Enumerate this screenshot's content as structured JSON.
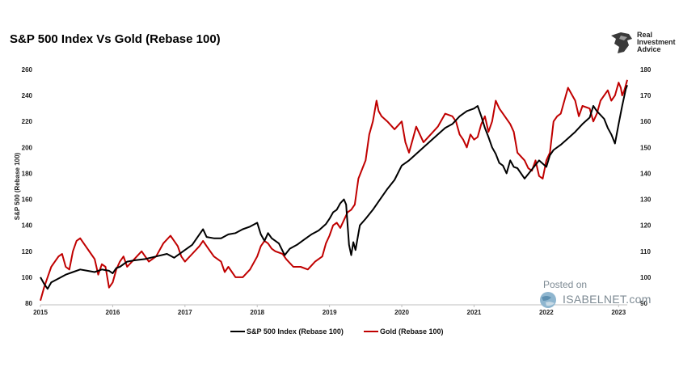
{
  "chart_data": {
    "type": "line",
    "title": "S&P 500 Index Vs Gold (Rebase 100)",
    "ylabel": "S&P 500 (Rebase 100)",
    "xlabel": "",
    "x_ticks": [
      "2015",
      "2016",
      "2017",
      "2018",
      "2019",
      "2020",
      "2021",
      "2022",
      "2023"
    ],
    "x_range": [
      2015.0,
      2023.12
    ],
    "ylim_left": [
      80,
      260
    ],
    "yticks_left": [
      80,
      100,
      120,
      140,
      160,
      180,
      200,
      220,
      240,
      260
    ],
    "ylim_right": [
      90,
      180
    ],
    "yticks_right": [
      90,
      100,
      110,
      120,
      130,
      140,
      150,
      160,
      170,
      180
    ],
    "series": [
      {
        "name": "S&P 500 Index (Rebase 100)",
        "axis": "left",
        "color": "#000000",
        "points": [
          [
            2015.0,
            100
          ],
          [
            2015.05,
            95
          ],
          [
            2015.1,
            91
          ],
          [
            2015.15,
            96
          ],
          [
            2015.25,
            99
          ],
          [
            2015.35,
            102
          ],
          [
            2015.45,
            104
          ],
          [
            2015.55,
            106
          ],
          [
            2015.65,
            105
          ],
          [
            2015.75,
            104
          ],
          [
            2015.85,
            106
          ],
          [
            2015.95,
            105
          ],
          [
            2016.0,
            103
          ],
          [
            2016.05,
            107
          ],
          [
            2016.1,
            108
          ],
          [
            2016.2,
            112
          ],
          [
            2016.3,
            113
          ],
          [
            2016.45,
            114
          ],
          [
            2016.6,
            116
          ],
          [
            2016.75,
            118
          ],
          [
            2016.85,
            115
          ],
          [
            2016.95,
            119
          ],
          [
            2017.0,
            121
          ],
          [
            2017.1,
            125
          ],
          [
            2017.2,
            133
          ],
          [
            2017.25,
            137
          ],
          [
            2017.3,
            131
          ],
          [
            2017.4,
            130
          ],
          [
            2017.5,
            130
          ],
          [
            2017.6,
            133
          ],
          [
            2017.7,
            134
          ],
          [
            2017.8,
            137
          ],
          [
            2017.9,
            139
          ],
          [
            2018.0,
            142
          ],
          [
            2018.05,
            133
          ],
          [
            2018.1,
            128
          ],
          [
            2018.15,
            134
          ],
          [
            2018.2,
            130
          ],
          [
            2018.3,
            126
          ],
          [
            2018.38,
            117
          ],
          [
            2018.45,
            122
          ],
          [
            2018.55,
            125
          ],
          [
            2018.65,
            129
          ],
          [
            2018.75,
            133
          ],
          [
            2018.85,
            136
          ],
          [
            2018.95,
            141
          ],
          [
            2019.0,
            145
          ],
          [
            2019.05,
            150
          ],
          [
            2019.1,
            152
          ],
          [
            2019.15,
            157
          ],
          [
            2019.2,
            160
          ],
          [
            2019.23,
            156
          ],
          [
            2019.27,
            125
          ],
          [
            2019.3,
            117
          ],
          [
            2019.33,
            127
          ],
          [
            2019.36,
            121
          ],
          [
            2019.42,
            140
          ],
          [
            2019.5,
            145
          ],
          [
            2019.6,
            152
          ],
          [
            2019.7,
            160
          ],
          [
            2019.8,
            168
          ],
          [
            2019.9,
            175
          ],
          [
            2020.0,
            186
          ],
          [
            2020.1,
            190
          ],
          [
            2020.2,
            195
          ],
          [
            2020.3,
            200
          ],
          [
            2020.4,
            205
          ],
          [
            2020.5,
            210
          ],
          [
            2020.6,
            215
          ],
          [
            2020.7,
            218
          ],
          [
            2020.8,
            224
          ],
          [
            2020.9,
            228
          ],
          [
            2021.0,
            230
          ],
          [
            2021.05,
            232
          ],
          [
            2021.1,
            224
          ],
          [
            2021.15,
            215
          ],
          [
            2021.2,
            208
          ],
          [
            2021.25,
            200
          ],
          [
            2021.3,
            195
          ],
          [
            2021.35,
            188
          ],
          [
            2021.4,
            186
          ],
          [
            2021.45,
            180
          ],
          [
            2021.5,
            190
          ],
          [
            2021.55,
            185
          ],
          [
            2021.6,
            184
          ],
          [
            2021.7,
            176
          ],
          [
            2021.8,
            183
          ],
          [
            2021.9,
            190
          ],
          [
            2022.0,
            185
          ],
          [
            2022.05,
            194
          ],
          [
            2022.1,
            198
          ],
          [
            2022.2,
            202
          ],
          [
            2022.3,
            207
          ],
          [
            2022.4,
            212
          ],
          [
            2022.5,
            218
          ],
          [
            2022.6,
            223
          ],
          [
            2022.65,
            232
          ],
          [
            2022.7,
            228
          ],
          [
            2022.8,
            222
          ],
          [
            2022.85,
            215
          ],
          [
            2022.9,
            210
          ],
          [
            2022.95,
            203
          ],
          [
            2023.0,
            218
          ],
          [
            2023.05,
            232
          ],
          [
            2023.1,
            245
          ],
          [
            2023.12,
            248
          ]
        ]
      },
      {
        "name": "Gold (Rebase  100)",
        "axis": "right",
        "color": "#c00000",
        "points": [
          [
            2015.0,
            91
          ],
          [
            2015.05,
            96
          ],
          [
            2015.1,
            100
          ],
          [
            2015.15,
            104
          ],
          [
            2015.2,
            106
          ],
          [
            2015.25,
            108
          ],
          [
            2015.3,
            109
          ],
          [
            2015.35,
            104
          ],
          [
            2015.4,
            103
          ],
          [
            2015.45,
            110
          ],
          [
            2015.5,
            114
          ],
          [
            2015.55,
            115
          ],
          [
            2015.6,
            113
          ],
          [
            2015.7,
            109
          ],
          [
            2015.75,
            107
          ],
          [
            2015.8,
            101
          ],
          [
            2015.85,
            105
          ],
          [
            2015.9,
            104
          ],
          [
            2015.95,
            96
          ],
          [
            2016.0,
            98
          ],
          [
            2016.05,
            103
          ],
          [
            2016.1,
            106
          ],
          [
            2016.15,
            108
          ],
          [
            2016.2,
            104
          ],
          [
            2016.3,
            107
          ],
          [
            2016.4,
            110
          ],
          [
            2016.5,
            106
          ],
          [
            2016.6,
            108
          ],
          [
            2016.7,
            113
          ],
          [
            2016.8,
            116
          ],
          [
            2016.85,
            114
          ],
          [
            2016.9,
            112
          ],
          [
            2016.95,
            108
          ],
          [
            2017.0,
            106
          ],
          [
            2017.1,
            109
          ],
          [
            2017.2,
            112
          ],
          [
            2017.25,
            114
          ],
          [
            2017.3,
            112
          ],
          [
            2017.35,
            110
          ],
          [
            2017.4,
            108
          ],
          [
            2017.5,
            106
          ],
          [
            2017.55,
            102
          ],
          [
            2017.6,
            104
          ],
          [
            2017.7,
            100
          ],
          [
            2017.8,
            100
          ],
          [
            2017.9,
            103
          ],
          [
            2018.0,
            108
          ],
          [
            2018.05,
            112
          ],
          [
            2018.1,
            114
          ],
          [
            2018.15,
            113
          ],
          [
            2018.2,
            111
          ],
          [
            2018.25,
            110
          ],
          [
            2018.35,
            109
          ],
          [
            2018.4,
            107
          ],
          [
            2018.5,
            104
          ],
          [
            2018.6,
            104
          ],
          [
            2018.7,
            103
          ],
          [
            2018.8,
            106
          ],
          [
            2018.9,
            108
          ],
          [
            2018.95,
            113
          ],
          [
            2019.0,
            116
          ],
          [
            2019.05,
            120
          ],
          [
            2019.1,
            121
          ],
          [
            2019.15,
            119
          ],
          [
            2019.2,
            122
          ],
          [
            2019.25,
            125
          ],
          [
            2019.3,
            126
          ],
          [
            2019.35,
            128
          ],
          [
            2019.4,
            138
          ],
          [
            2019.5,
            145
          ],
          [
            2019.55,
            155
          ],
          [
            2019.6,
            160
          ],
          [
            2019.65,
            168
          ],
          [
            2019.68,
            164
          ],
          [
            2019.72,
            162
          ],
          [
            2019.8,
            160
          ],
          [
            2019.9,
            157
          ],
          [
            2020.0,
            160
          ],
          [
            2020.05,
            152
          ],
          [
            2020.1,
            148
          ],
          [
            2020.15,
            153
          ],
          [
            2020.2,
            158
          ],
          [
            2020.3,
            152
          ],
          [
            2020.4,
            155
          ],
          [
            2020.5,
            158
          ],
          [
            2020.6,
            163
          ],
          [
            2020.7,
            162
          ],
          [
            2020.75,
            160
          ],
          [
            2020.8,
            155
          ],
          [
            2020.85,
            153
          ],
          [
            2020.9,
            150
          ],
          [
            2020.95,
            155
          ],
          [
            2021.0,
            153
          ],
          [
            2021.05,
            154
          ],
          [
            2021.1,
            159
          ],
          [
            2021.15,
            162
          ],
          [
            2021.2,
            156
          ],
          [
            2021.25,
            160
          ],
          [
            2021.3,
            168
          ],
          [
            2021.35,
            165
          ],
          [
            2021.4,
            163
          ],
          [
            2021.5,
            159
          ],
          [
            2021.55,
            156
          ],
          [
            2021.6,
            148
          ],
          [
            2021.7,
            145
          ],
          [
            2021.75,
            142
          ],
          [
            2021.8,
            141
          ],
          [
            2021.85,
            145
          ],
          [
            2021.9,
            139
          ],
          [
            2021.95,
            138
          ],
          [
            2022.0,
            145
          ],
          [
            2022.05,
            148
          ],
          [
            2022.1,
            160
          ],
          [
            2022.15,
            162
          ],
          [
            2022.2,
            163
          ],
          [
            2022.25,
            168
          ],
          [
            2022.3,
            173
          ],
          [
            2022.4,
            168
          ],
          [
            2022.45,
            162
          ],
          [
            2022.5,
            166
          ],
          [
            2022.6,
            165
          ],
          [
            2022.65,
            160
          ],
          [
            2022.7,
            163
          ],
          [
            2022.75,
            168
          ],
          [
            2022.8,
            170
          ],
          [
            2022.85,
            172
          ],
          [
            2022.9,
            168
          ],
          [
            2022.95,
            170
          ],
          [
            2023.0,
            175
          ],
          [
            2023.03,
            173
          ],
          [
            2023.05,
            170
          ],
          [
            2023.08,
            172
          ],
          [
            2023.1,
            174
          ],
          [
            2023.12,
            176
          ]
        ]
      }
    ],
    "legend_position": "bottom-center"
  },
  "branding": {
    "logo_lines": [
      "Real",
      "Investment",
      "Advice"
    ],
    "watermark_posted": "Posted on",
    "watermark_site": "ISABELNET.com"
  }
}
